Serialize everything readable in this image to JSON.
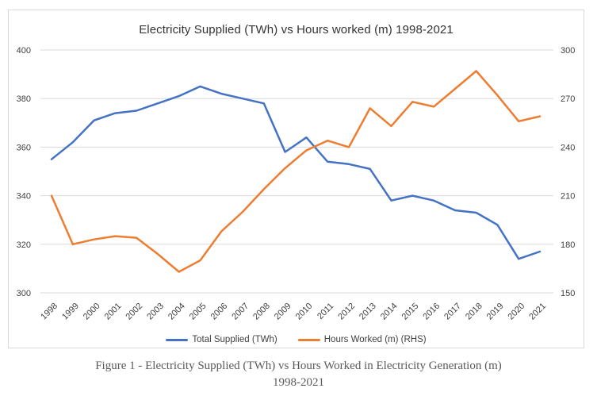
{
  "title": "Electricity Supplied (TWh) vs Hours worked (m) 1998-2021",
  "caption": {
    "line1": "Figure 1 - Electricity Supplied (TWh) vs Hours Worked in Electricity Generation (m)",
    "line2": "1998-2021"
  },
  "legend": [
    {
      "label": "Total Supplied (TWh)",
      "color": "#4472C4"
    },
    {
      "label": "Hours Worked (m) (RHS)",
      "color": "#ED7D31"
    }
  ],
  "colors": {
    "blue_series": "#4472C4",
    "orange_series": "#ED7D31",
    "gridline": "#d9d9d9",
    "axis_text": "#404040",
    "title_text": "#333333",
    "caption_text": "#5a5a5a"
  },
  "chart_data": {
    "type": "line",
    "title": "Electricity Supplied (TWh) vs Hours worked (m) 1998-2021",
    "categories": [
      1998,
      1999,
      2000,
      2001,
      2002,
      2003,
      2004,
      2005,
      2006,
      2007,
      2008,
      2009,
      2010,
      2011,
      2012,
      2013,
      2014,
      2015,
      2016,
      2017,
      2018,
      2019,
      2020,
      2021
    ],
    "series": [
      {
        "name": "Total Supplied (TWh)",
        "axis": "left",
        "color": "#4472C4",
        "values": [
          355,
          362,
          371,
          374,
          375,
          378,
          381,
          385,
          382,
          380,
          378,
          358,
          364,
          354,
          353,
          351,
          338,
          340,
          338,
          334,
          333,
          328,
          314,
          317
        ]
      },
      {
        "name": "Hours Worked (m) (RHS)",
        "axis": "right",
        "color": "#ED7D31",
        "values": [
          210,
          180,
          183,
          185,
          184,
          174,
          163,
          170,
          188,
          200,
          214,
          227,
          238,
          244,
          240,
          264,
          253,
          268,
          265,
          276,
          287,
          272,
          256,
          259
        ]
      }
    ],
    "left_axis": {
      "label": "",
      "ticks": [
        400,
        380,
        360,
        340,
        320,
        300
      ],
      "range": [
        300,
        400
      ]
    },
    "right_axis": {
      "label": "",
      "ticks": [
        300,
        270,
        240,
        210,
        180,
        150
      ],
      "range": [
        150,
        300
      ]
    },
    "grid": true,
    "legend_position": "bottom"
  }
}
